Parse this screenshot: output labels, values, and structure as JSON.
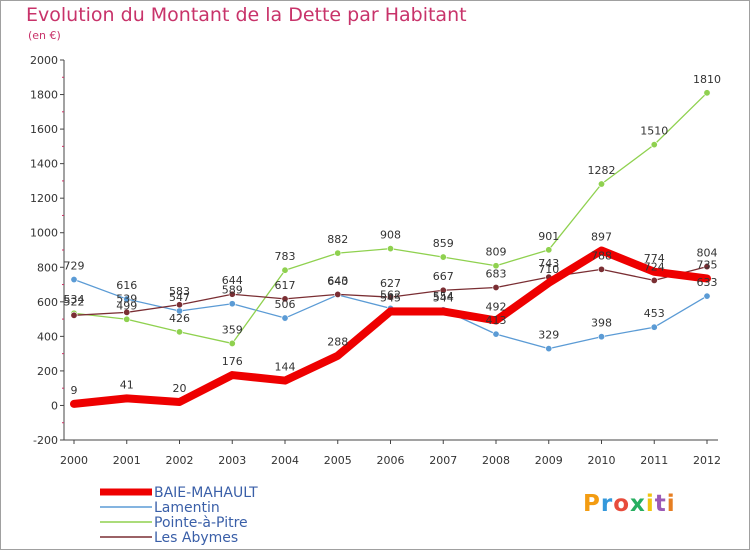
{
  "header": {
    "title": "Evolution du Montant de la Dette par Habitant",
    "subtitle": "(en €)"
  },
  "brand": {
    "text": "Proxiti",
    "colors": [
      "#f39c12",
      "#3498db",
      "#e74c3c",
      "#27ae60",
      "#f1c40f",
      "#9b59b6",
      "#e67e22"
    ]
  },
  "chart_data": {
    "type": "line",
    "title": "Evolution du Montant de la Dette par Habitant",
    "subtitle": "(en €)",
    "xlabel": "",
    "ylabel": "",
    "x": [
      "2000",
      "2001",
      "2002",
      "2003",
      "2004",
      "2005",
      "2006",
      "2007",
      "2008",
      "2009",
      "2010",
      "2011",
      "2012"
    ],
    "ylim": [
      -200,
      2000
    ],
    "yticks": [
      -200,
      0,
      200,
      400,
      600,
      800,
      1000,
      1200,
      1400,
      1600,
      1800,
      2000
    ],
    "grid": false,
    "legend": "bottom-left",
    "series": [
      {
        "name": "BAIE-MAHAULT",
        "color": "#ee0000",
        "width": 8,
        "values": [
          9,
          41,
          20,
          176,
          144,
          288,
          545,
          544,
          492,
          710,
          897,
          774,
          735
        ]
      },
      {
        "name": "Lamentin",
        "color": "#5b9bd5",
        "width": 1.3,
        "values": [
          729,
          616,
          547,
          589,
          506,
          640,
          562,
          554,
          413,
          329,
          398,
          453,
          633
        ]
      },
      {
        "name": "Pointe-à-Pitre",
        "color": "#8fd14f",
        "width": 1.3,
        "values": [
          534,
          499,
          426,
          359,
          783,
          882,
          908,
          859,
          809,
          901,
          1282,
          1510,
          1810
        ]
      },
      {
        "name": "Les Abymes",
        "color": "#7a2e33",
        "width": 1.3,
        "values": [
          522,
          539,
          583,
          644,
          617,
          643,
          627,
          667,
          683,
          743,
          788,
          724,
          804
        ]
      }
    ]
  }
}
